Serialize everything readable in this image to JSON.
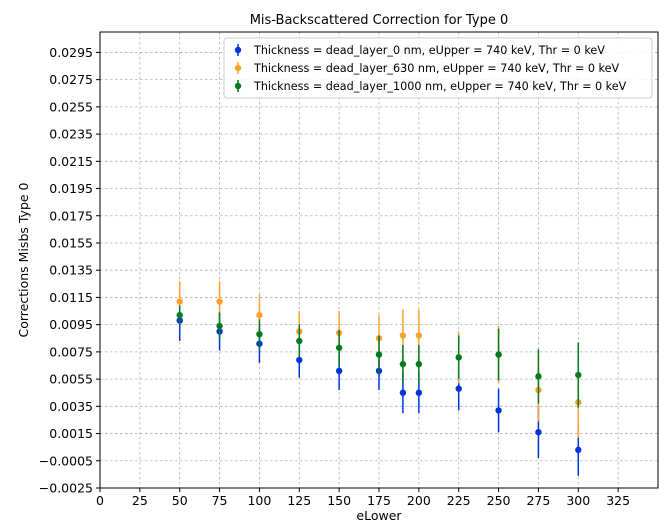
{
  "chart_data": {
    "type": "scatter",
    "title": "Mis-Backscattered Correction for Type 0",
    "xlabel": "eLower",
    "ylabel": "Corrections Misbs Type 0",
    "xlim": [
      0,
      350
    ],
    "ylim": [
      -0.0025,
      0.031
    ],
    "xticks": [
      0,
      25,
      50,
      75,
      100,
      125,
      150,
      175,
      200,
      225,
      250,
      275,
      300,
      325
    ],
    "yticks": [
      -0.0025,
      -0.0005,
      0.0015,
      0.0035,
      0.0055,
      0.0075,
      0.0095,
      0.0115,
      0.0135,
      0.0155,
      0.0175,
      0.0195,
      0.0215,
      0.0235,
      0.0255,
      0.0275,
      0.0295
    ],
    "ytick_labels": [
      "−0.0025",
      "−0.0005",
      "0.0015",
      "0.0035",
      "0.0055",
      "0.0075",
      "0.0095",
      "0.0115",
      "0.0135",
      "0.0155",
      "0.0175",
      "0.0195",
      "0.0215",
      "0.0235",
      "0.0255",
      "0.0275",
      "0.0295"
    ],
    "grid": true,
    "legend_position": "top-right",
    "series": [
      {
        "name": "Thickness = dead_layer_0 nm, eUpper = 740 keV, Thr = 0 keV",
        "color": "#0033dd",
        "x": [
          50,
          75,
          100,
          125,
          150,
          175,
          190,
          200,
          225,
          250,
          275,
          300
        ],
        "y": [
          0.0098,
          0.009,
          0.0081,
          0.0069,
          0.0061,
          0.0061,
          0.0045,
          0.0045,
          0.0048,
          0.0032,
          0.0016,
          0.0003
        ],
        "err": [
          0.0015,
          0.0014,
          0.0014,
          0.0013,
          0.0014,
          0.0014,
          0.0015,
          0.0015,
          0.0016,
          0.0016,
          0.0019,
          0.0019
        ]
      },
      {
        "name": "Thickness = dead_layer_630 nm, eUpper = 740 keV, Thr = 0 keV",
        "color": "#ffa030",
        "x": [
          50,
          75,
          100,
          125,
          150,
          175,
          190,
          200,
          225,
          250,
          275,
          300
        ],
        "y": [
          0.0112,
          0.0112,
          0.0102,
          0.009,
          0.0089,
          0.0085,
          0.0087,
          0.0087,
          0.0071,
          0.0073,
          0.0047,
          0.0038
        ],
        "err": [
          0.0015,
          0.0015,
          0.0015,
          0.0015,
          0.0016,
          0.0017,
          0.0019,
          0.0019,
          0.0019,
          0.0021,
          0.0023,
          0.0026
        ]
      },
      {
        "name": "Thickness = dead_layer_1000 nm, eUpper = 740 keV, Thr = 0 keV",
        "color": "#007b1f",
        "x": [
          50,
          75,
          100,
          125,
          150,
          175,
          190,
          200,
          225,
          250,
          275,
          300
        ],
        "y": [
          0.0102,
          0.0094,
          0.0088,
          0.0083,
          0.0078,
          0.0073,
          0.0066,
          0.0066,
          0.0071,
          0.0073,
          0.0057,
          0.0058
        ],
        "err": [
          0.0007,
          0.001,
          0.0011,
          0.0012,
          0.0013,
          0.0014,
          0.0014,
          0.0014,
          0.0016,
          0.0019,
          0.002,
          0.0024
        ]
      }
    ]
  }
}
